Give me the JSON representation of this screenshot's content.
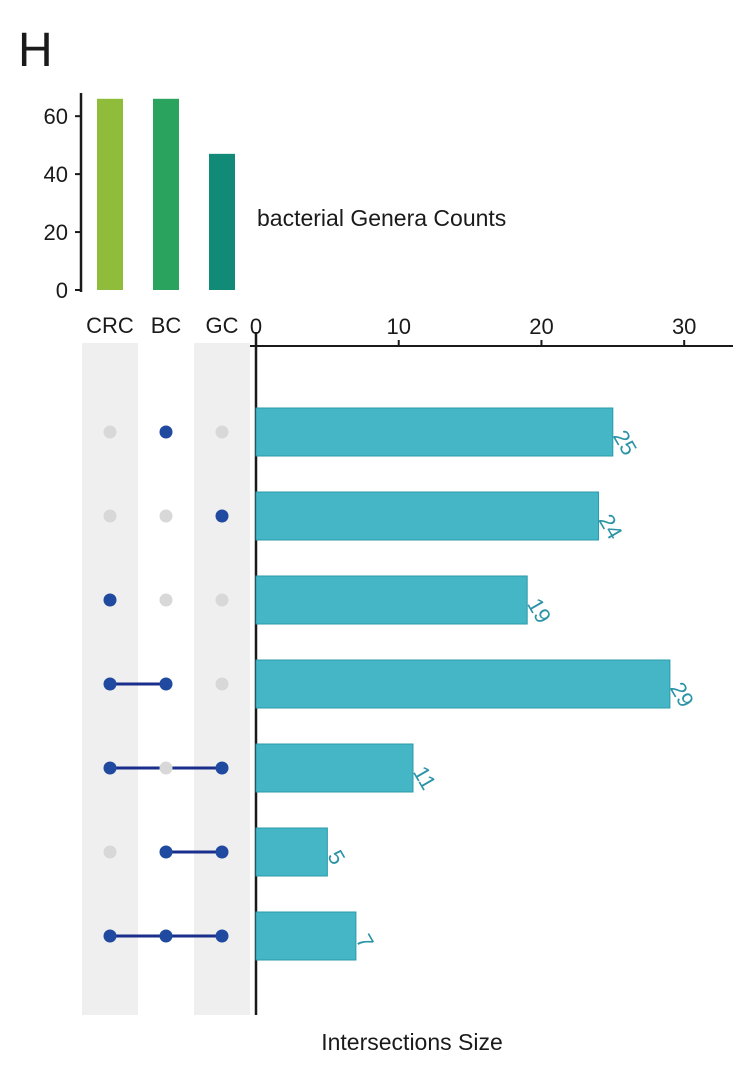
{
  "panel_label": "H",
  "colors": {
    "set_bars": [
      "#8fbc3a",
      "#2aa35e",
      "#128a78"
    ],
    "intersection_bar": "#45b6c6",
    "intersection_bar_edge": "#2b9aab",
    "value_label": "#2b93a6",
    "dot_active": "#1f4aa0",
    "dot_inactive": "#d8d8d8",
    "line": "#1a2f8c",
    "stripe": "#efefef",
    "axis": "#1a1a1a"
  },
  "chart_data": [
    {
      "type": "bar",
      "name": "set_sizes",
      "label": "bacterial Genera Counts",
      "categories": [
        "CRC",
        "BC",
        "GC"
      ],
      "values": [
        66,
        66,
        47
      ],
      "ylim": [
        0,
        68
      ],
      "yticks": [
        0,
        20,
        40,
        60
      ]
    },
    {
      "type": "bar",
      "name": "intersections",
      "orientation": "horizontal",
      "xlabel": "Intersections Size",
      "xlim": [
        0,
        33
      ],
      "xticks": [
        0,
        10,
        20,
        30
      ],
      "sets": [
        "CRC",
        "BC",
        "GC"
      ],
      "rows": [
        {
          "members": [
            false,
            true,
            false
          ],
          "value": 25
        },
        {
          "members": [
            false,
            false,
            true
          ],
          "value": 24
        },
        {
          "members": [
            true,
            false,
            false
          ],
          "value": 19
        },
        {
          "members": [
            true,
            true,
            false
          ],
          "value": 29
        },
        {
          "members": [
            true,
            false,
            true
          ],
          "value": 11
        },
        {
          "members": [
            false,
            true,
            true
          ],
          "value": 5
        },
        {
          "members": [
            true,
            true,
            true
          ],
          "value": 7
        }
      ]
    }
  ]
}
